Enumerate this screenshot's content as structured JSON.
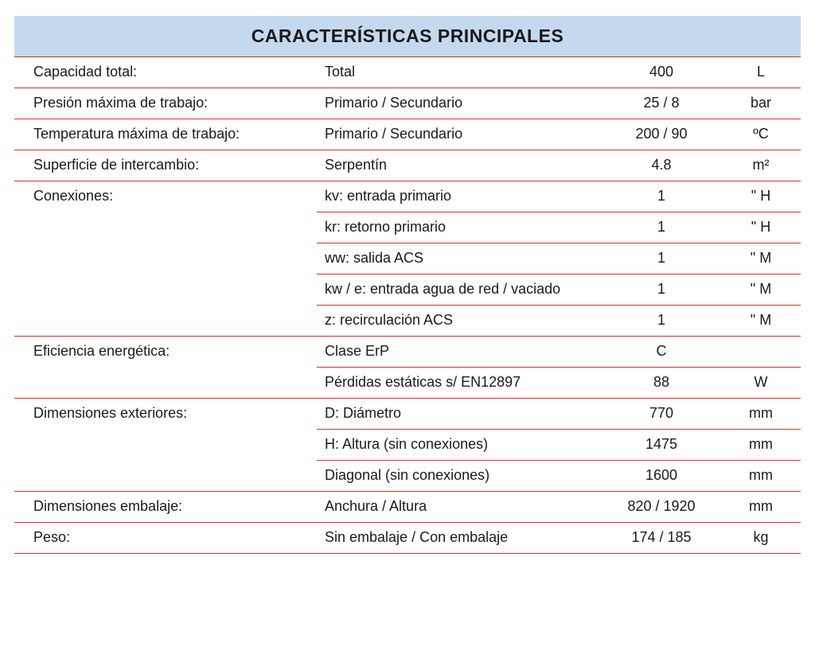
{
  "title": "CARACTERÍSTICAS PRINCIPALES",
  "header_bg": "#c5d9ee",
  "rule_color_red": "#d9322c",
  "rule_color_gray": "#e5e5e5",
  "text_color": "#1a1a1a",
  "font_size_header": 23,
  "font_size_body": 18,
  "rows": [
    {
      "label": "Capacidad total:",
      "desc": "Total",
      "value": "400",
      "unit": "L",
      "rule": "red",
      "subrule": "gray"
    },
    {
      "label": "Presión máxima de trabajo:",
      "desc": "Primario / Secundario",
      "value": "25 / 8",
      "unit": "bar",
      "rule": "red",
      "subrule": "gray"
    },
    {
      "label": "Temperatura máxima de trabajo:",
      "desc": "Primario / Secundario",
      "value": "200 / 90",
      "unit": "ºC",
      "rule": "red",
      "subrule": "gray"
    },
    {
      "label": "Superficie de intercambio:",
      "desc": "Serpentín",
      "value": "4.8",
      "unit": "m²",
      "rule": "red",
      "subrule": "gray"
    },
    {
      "label": "Conexiones:",
      "desc": "kv: entrada primario",
      "value": "1",
      "unit": "\" H",
      "rule": "red",
      "subrule": ""
    },
    {
      "label": "",
      "desc": "kr: retorno primario",
      "value": "1",
      "unit": "\" H",
      "rule": "",
      "subrule": "red"
    },
    {
      "label": "",
      "desc": "ww: salida ACS",
      "value": "1",
      "unit": "\" M",
      "rule": "",
      "subrule": "red"
    },
    {
      "label": "",
      "desc": "kw / e: entrada agua de red / vaciado",
      "value": "1",
      "unit": "\" M",
      "rule": "",
      "subrule": "red"
    },
    {
      "label": "",
      "desc": "z: recirculación ACS",
      "value": "1",
      "unit": "\" M",
      "rule": "",
      "subrule": "red"
    },
    {
      "label": "Eficiencia energética:",
      "desc": "Clase ErP",
      "value": "C",
      "unit": "",
      "rule": "red",
      "subrule": ""
    },
    {
      "label": "",
      "desc": "Pérdidas estáticas s/ EN12897",
      "value": "88",
      "unit": "W",
      "rule": "",
      "subrule": "red"
    },
    {
      "label": "Dimensiones exteriores:",
      "desc": "D: Diámetro",
      "value": "770",
      "unit": "mm",
      "rule": "red",
      "subrule": ""
    },
    {
      "label": "",
      "desc": "H: Altura (sin conexiones)",
      "value": "1475",
      "unit": "mm",
      "rule": "",
      "subrule": "red"
    },
    {
      "label": "",
      "desc": "Diagonal (sin conexiones)",
      "value": "1600",
      "unit": "mm",
      "rule": "",
      "subrule": "red"
    },
    {
      "label": "Dimensiones embalaje:",
      "desc": "Anchura / Altura",
      "value": "820 / 1920",
      "unit": "mm",
      "rule": "red",
      "subrule": "gray"
    },
    {
      "label": "Peso:",
      "desc": "Sin embalaje / Con embalaje",
      "value": "174 / 185",
      "unit": "kg",
      "rule": "red",
      "subrule": "gray"
    }
  ],
  "final_rule": "red"
}
